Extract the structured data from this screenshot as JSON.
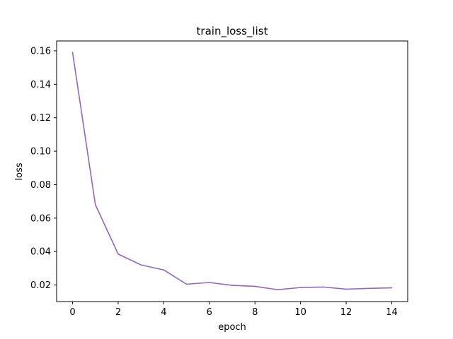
{
  "chart_data": {
    "type": "line",
    "title": "train_loss_list",
    "xlabel": "epoch",
    "ylabel": "loss",
    "x": [
      0,
      1,
      2,
      3,
      4,
      5,
      6,
      7,
      8,
      9,
      10,
      11,
      12,
      13,
      14
    ],
    "series": [
      {
        "values": [
          0.159,
          0.068,
          0.0385,
          0.032,
          0.029,
          0.0205,
          0.0215,
          0.0198,
          0.0192,
          0.0172,
          0.0185,
          0.0188,
          0.0175,
          0.018,
          0.0183
        ],
        "color": "#9467bd"
      }
    ],
    "xticks": [
      0,
      2,
      4,
      6,
      8,
      10,
      12,
      14
    ],
    "xtick_labels": [
      "0",
      "2",
      "4",
      "6",
      "8",
      "10",
      "12",
      "14"
    ],
    "yticks": [
      0.02,
      0.04,
      0.06,
      0.08,
      0.1,
      0.12,
      0.14,
      0.16
    ],
    "ytick_labels": [
      "0.02",
      "0.04",
      "0.06",
      "0.08",
      "0.10",
      "0.12",
      "0.14",
      "0.16"
    ],
    "xlim": [
      -0.7,
      14.7
    ],
    "ylim": [
      0.0101,
      0.1659
    ],
    "grid": false,
    "legend": "none"
  }
}
